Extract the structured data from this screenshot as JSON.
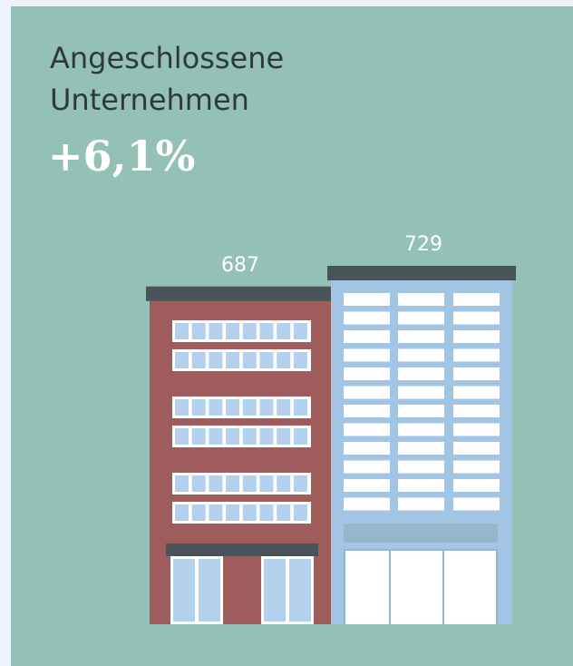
{
  "chart_data": {
    "type": "building",
    "title": "Angeschlossene Unternehmen",
    "annotation": "+6,1%",
    "categories": [
      null,
      null
    ],
    "values": [
      687,
      729
    ],
    "colors": [
      "#9e5d5c",
      "#a2c5e4"
    ]
  }
}
